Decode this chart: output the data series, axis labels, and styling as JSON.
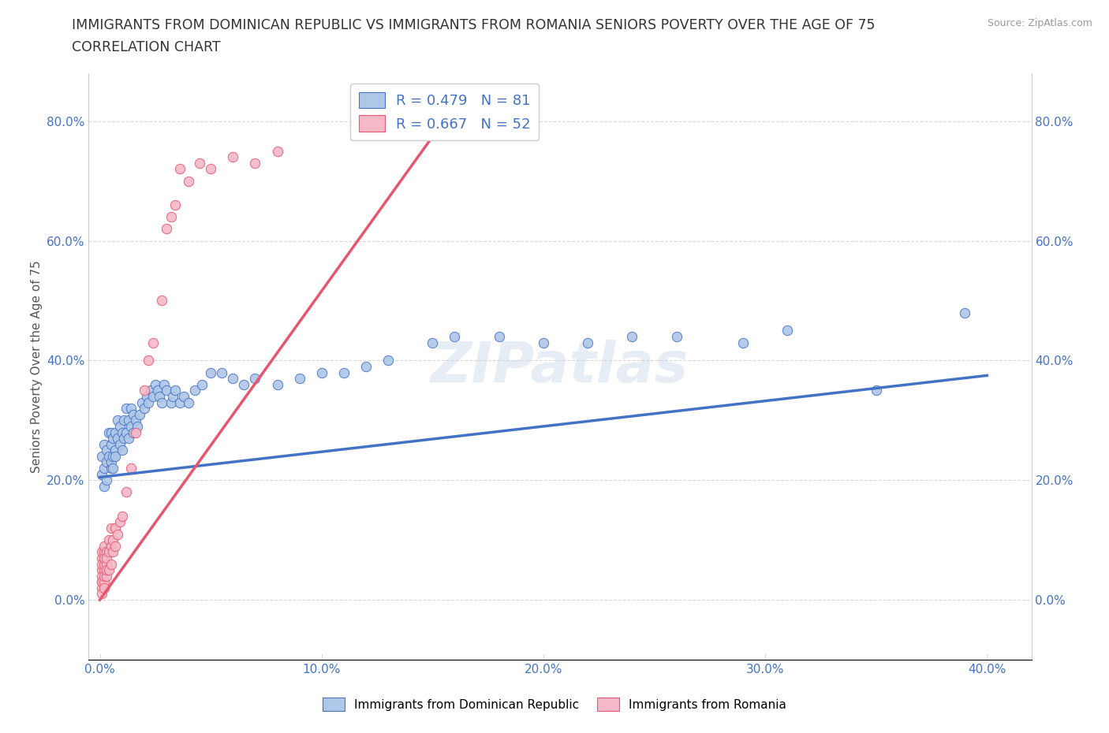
{
  "title_line1": "IMMIGRANTS FROM DOMINICAN REPUBLIC VS IMMIGRANTS FROM ROMANIA SENIORS POVERTY OVER THE AGE OF 75",
  "title_line2": "CORRELATION CHART",
  "source": "Source: ZipAtlas.com",
  "ylabel": "Seniors Poverty Over the Age of 75",
  "xlim": [
    -0.005,
    0.42
  ],
  "ylim": [
    -0.1,
    0.88
  ],
  "xticks": [
    0.0,
    0.1,
    0.2,
    0.3,
    0.4
  ],
  "xtick_labels": [
    "0.0%",
    "10.0%",
    "20.0%",
    "30.0%",
    "40.0%"
  ],
  "yticks": [
    0.0,
    0.2,
    0.4,
    0.6,
    0.8
  ],
  "ytick_labels": [
    "0.0%",
    "20.0%",
    "40.0%",
    "60.0%",
    "80.0%"
  ],
  "color_blue": "#aec6e8",
  "color_blue_line": "#4472c4",
  "color_pink": "#f4b8c8",
  "color_pink_line": "#e8566e",
  "color_blue_text": "#4472c4",
  "legend_R_blue": "R = 0.479",
  "legend_N_blue": "N = 81",
  "legend_R_pink": "R = 0.667",
  "legend_N_pink": "N = 52",
  "watermark": "ZIPatlas",
  "blue_scatter_x": [
    0.001,
    0.001,
    0.002,
    0.002,
    0.002,
    0.003,
    0.003,
    0.003,
    0.004,
    0.004,
    0.005,
    0.005,
    0.005,
    0.005,
    0.006,
    0.006,
    0.006,
    0.007,
    0.007,
    0.007,
    0.008,
    0.008,
    0.009,
    0.009,
    0.01,
    0.01,
    0.011,
    0.011,
    0.012,
    0.012,
    0.013,
    0.013,
    0.014,
    0.014,
    0.015,
    0.015,
    0.016,
    0.017,
    0.018,
    0.019,
    0.02,
    0.021,
    0.022,
    0.023,
    0.024,
    0.025,
    0.026,
    0.027,
    0.028,
    0.029,
    0.03,
    0.032,
    0.033,
    0.034,
    0.036,
    0.038,
    0.04,
    0.043,
    0.046,
    0.05,
    0.055,
    0.06,
    0.065,
    0.07,
    0.08,
    0.09,
    0.1,
    0.11,
    0.12,
    0.13,
    0.15,
    0.16,
    0.18,
    0.2,
    0.22,
    0.24,
    0.26,
    0.29,
    0.31,
    0.35,
    0.39
  ],
  "blue_scatter_y": [
    0.21,
    0.24,
    0.22,
    0.19,
    0.26,
    0.23,
    0.2,
    0.25,
    0.24,
    0.28,
    0.22,
    0.26,
    0.23,
    0.28,
    0.24,
    0.27,
    0.22,
    0.25,
    0.28,
    0.24,
    0.27,
    0.3,
    0.26,
    0.29,
    0.25,
    0.28,
    0.27,
    0.3,
    0.28,
    0.32,
    0.27,
    0.3,
    0.29,
    0.32,
    0.28,
    0.31,
    0.3,
    0.29,
    0.31,
    0.33,
    0.32,
    0.34,
    0.33,
    0.35,
    0.34,
    0.36,
    0.35,
    0.34,
    0.33,
    0.36,
    0.35,
    0.33,
    0.34,
    0.35,
    0.33,
    0.34,
    0.33,
    0.35,
    0.36,
    0.38,
    0.38,
    0.37,
    0.36,
    0.37,
    0.36,
    0.37,
    0.38,
    0.38,
    0.39,
    0.4,
    0.43,
    0.44,
    0.44,
    0.43,
    0.43,
    0.44,
    0.44,
    0.43,
    0.45,
    0.35,
    0.48
  ],
  "pink_scatter_x": [
    0.001,
    0.001,
    0.001,
    0.001,
    0.001,
    0.001,
    0.001,
    0.001,
    0.001,
    0.002,
    0.002,
    0.002,
    0.002,
    0.002,
    0.002,
    0.002,
    0.002,
    0.003,
    0.003,
    0.003,
    0.003,
    0.003,
    0.004,
    0.004,
    0.004,
    0.005,
    0.005,
    0.005,
    0.006,
    0.006,
    0.007,
    0.007,
    0.008,
    0.009,
    0.01,
    0.012,
    0.014,
    0.016,
    0.02,
    0.022,
    0.024,
    0.028,
    0.03,
    0.032,
    0.034,
    0.036,
    0.04,
    0.045,
    0.05,
    0.06,
    0.07,
    0.08
  ],
  "pink_scatter_y": [
    0.03,
    0.05,
    0.07,
    0.02,
    0.04,
    0.06,
    0.01,
    0.08,
    0.03,
    0.05,
    0.08,
    0.03,
    0.06,
    0.04,
    0.07,
    0.02,
    0.09,
    0.06,
    0.04,
    0.08,
    0.05,
    0.07,
    0.08,
    0.05,
    0.1,
    0.09,
    0.06,
    0.12,
    0.1,
    0.08,
    0.12,
    0.09,
    0.11,
    0.13,
    0.14,
    0.18,
    0.22,
    0.28,
    0.35,
    0.4,
    0.43,
    0.5,
    0.62,
    0.64,
    0.66,
    0.72,
    0.7,
    0.73,
    0.72,
    0.74,
    0.73,
    0.75
  ],
  "blue_line_x": [
    0.0,
    0.4
  ],
  "blue_line_y": [
    0.205,
    0.375
  ],
  "pink_line_x": [
    0.0,
    0.155
  ],
  "pink_line_y": [
    0.0,
    0.8
  ],
  "title_fontsize": 12.5,
  "subtitle_fontsize": 12.5,
  "axis_label_fontsize": 11,
  "tick_fontsize": 11,
  "legend_fontsize": 13,
  "background_color": "#ffffff",
  "grid_color": "#d8d8d8"
}
